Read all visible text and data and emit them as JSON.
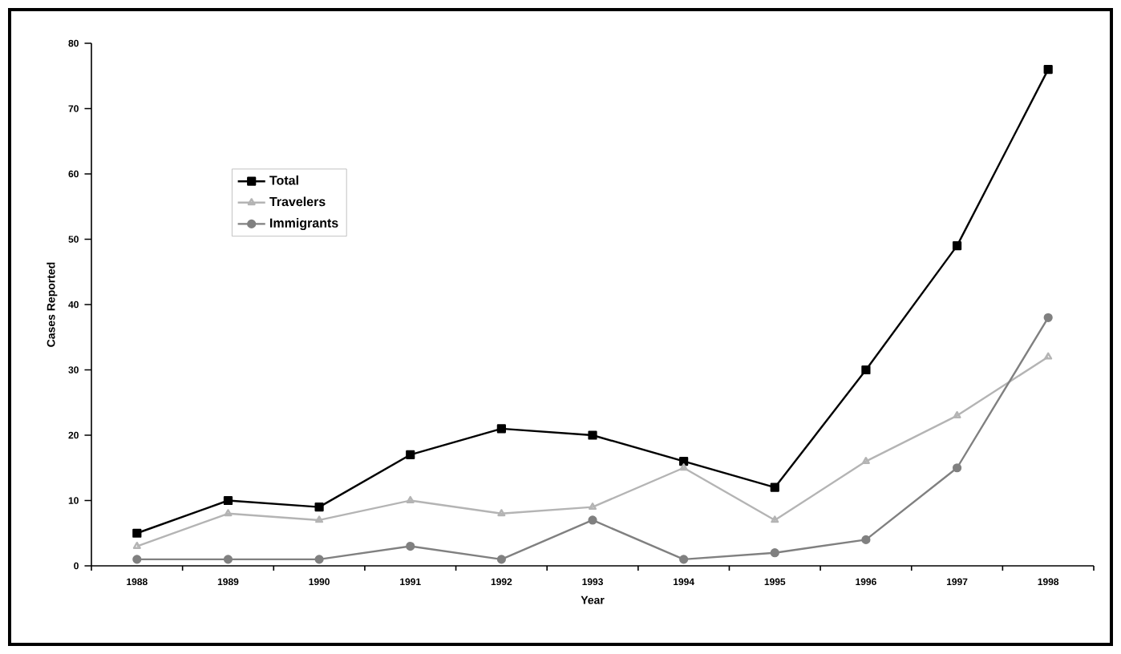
{
  "chart_data": {
    "type": "line",
    "xlabel": "Year",
    "ylabel": "Cases Reported",
    "categories": [
      "1988",
      "1989",
      "1990",
      "1991",
      "1992",
      "1993",
      "1994",
      "1995",
      "1996",
      "1997",
      "1998"
    ],
    "series": [
      {
        "name": "Total",
        "color": "#000000",
        "marker": "square",
        "values": [
          5,
          10,
          9,
          17,
          21,
          20,
          16,
          12,
          30,
          49,
          76
        ]
      },
      {
        "name": "Travelers",
        "color": "#b4b4b4",
        "marker": "triangle",
        "values": [
          3,
          8,
          7,
          10,
          8,
          9,
          15,
          7,
          16,
          23,
          32
        ]
      },
      {
        "name": "Immigrants",
        "color": "#808080",
        "marker": "circle",
        "values": [
          1,
          1,
          1,
          3,
          1,
          7,
          1,
          2,
          4,
          15,
          38
        ]
      }
    ],
    "ylim": [
      0,
      80
    ],
    "yticks": [
      0,
      10,
      20,
      30,
      40,
      50,
      60,
      70,
      80
    ],
    "grid": false,
    "legend": "top left",
    "line_style": "solid"
  }
}
